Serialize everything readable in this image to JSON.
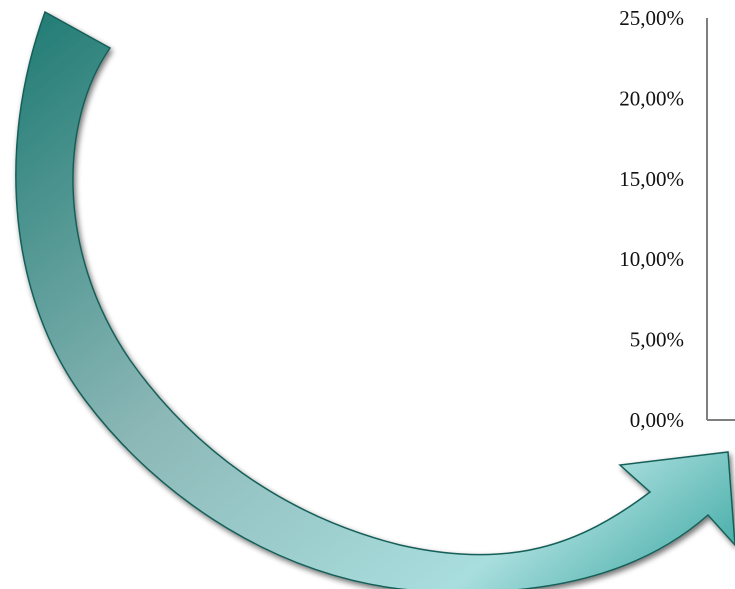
{
  "chart_data": {
    "type": "bar",
    "title": "",
    "xlabel": "",
    "ylabel": "",
    "categories": [],
    "values": [],
    "ylim": [
      0,
      25
    ],
    "yticks": [
      0,
      5,
      10,
      15,
      20,
      25
    ],
    "ytick_labels": [
      "0,00%",
      "5,00%",
      "10,00%",
      "15,00%",
      "20,00%",
      "25,00%"
    ],
    "grid": false,
    "legend": "none"
  },
  "decoration": {
    "arrow_icon": "curved-arrow-icon",
    "arrow_color_dark": "#1f7a73",
    "arrow_color_light": "#9fd9d8",
    "axis_color": "#7f7f7f"
  }
}
